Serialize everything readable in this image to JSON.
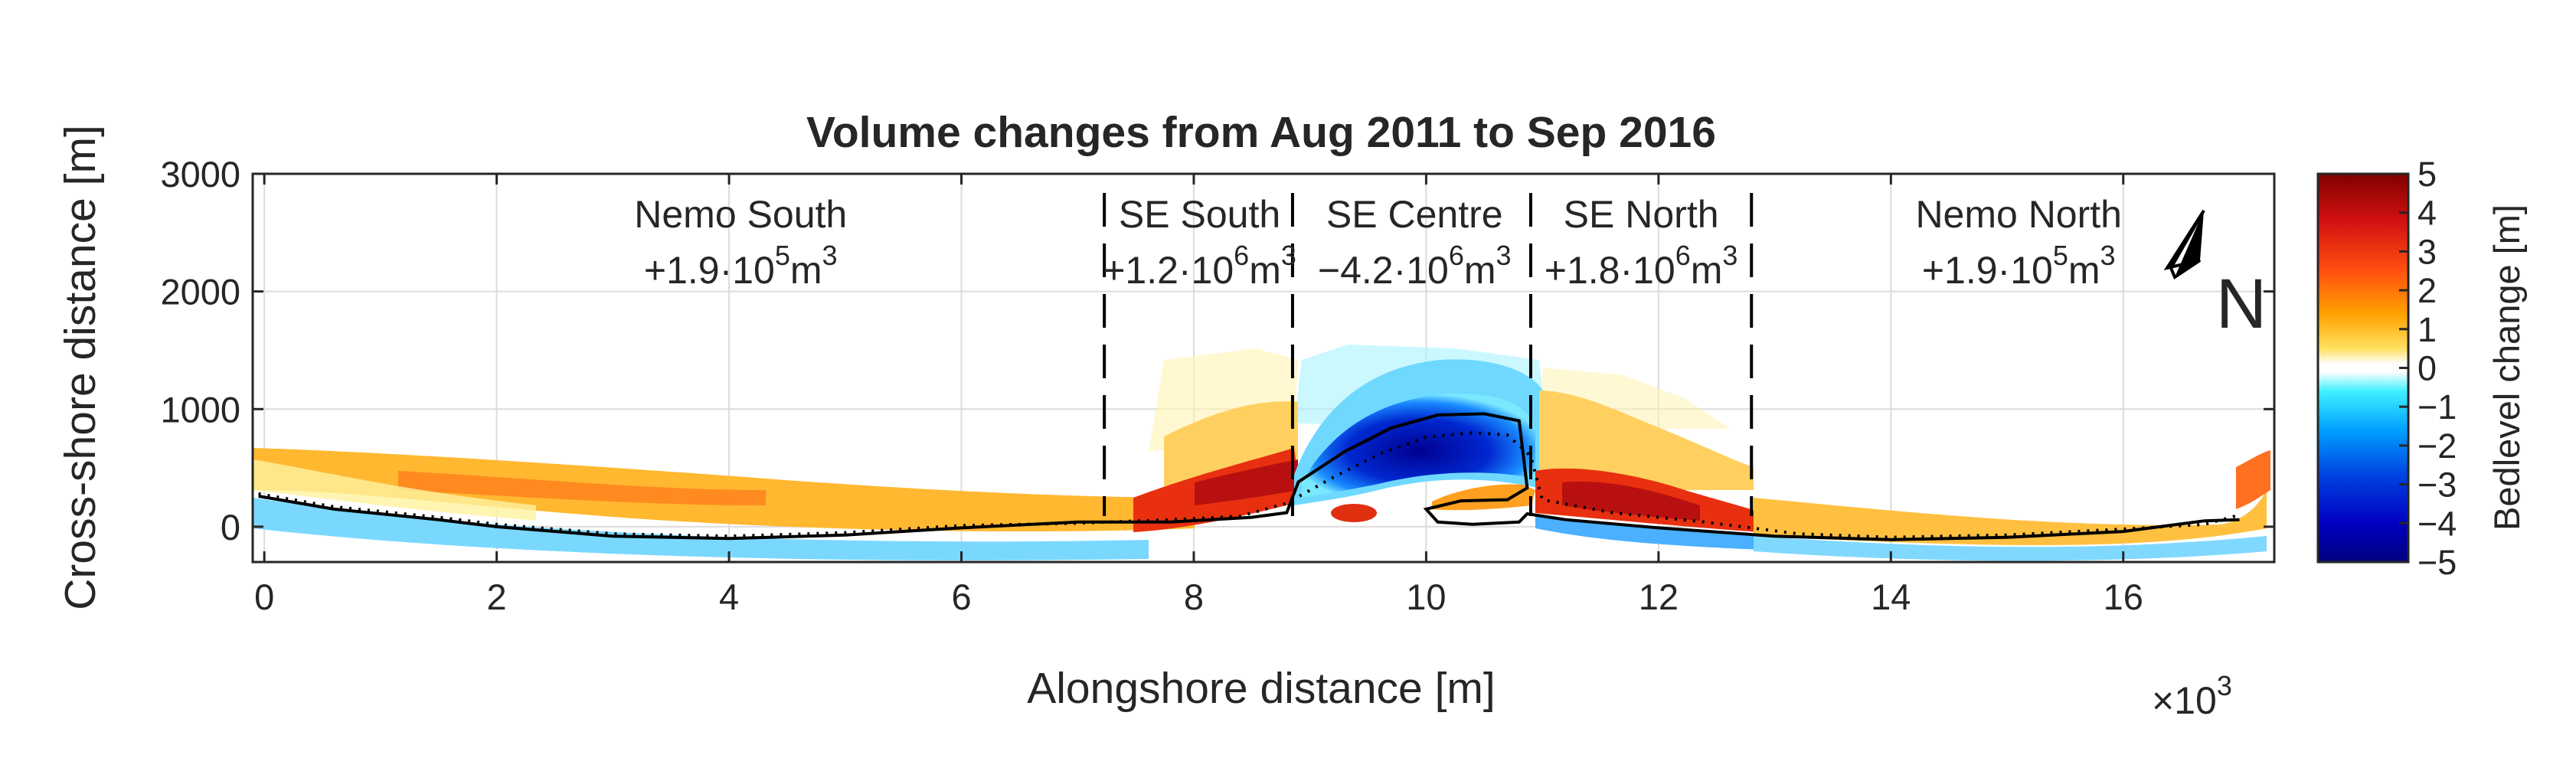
{
  "chart_data": {
    "type": "heatmap",
    "title": "Volume changes from Aug 2011 to Sep 2016",
    "xlabel": "Alongshore distance [m]",
    "ylabel": "Cross-shore distance [m]",
    "x_exponent_label": "×10",
    "x_exponent": "3",
    "xlim": [
      -100,
      17300
    ],
    "ylim": [
      -300,
      3000
    ],
    "x_ticks": [
      0,
      2000,
      4000,
      6000,
      8000,
      10000,
      12000,
      14000,
      16000
    ],
    "x_tick_labels": [
      "0",
      "2",
      "4",
      "6",
      "8",
      "10",
      "12",
      "14",
      "16"
    ],
    "y_ticks": [
      0,
      1000,
      2000,
      3000
    ],
    "y_tick_labels": [
      "0",
      "1000",
      "2000",
      "3000"
    ],
    "grid": true,
    "colorbar": {
      "label": "Bedlevel change [m]",
      "range": [
        -5,
        5
      ],
      "ticks": [
        5,
        4,
        3,
        2,
        1,
        0,
        -1,
        -2,
        -3,
        -4,
        -5
      ],
      "tick_labels": [
        "5",
        "4",
        "3",
        "2",
        "1",
        "0",
        "−1",
        "−2",
        "−3",
        "−4",
        "−5"
      ]
    },
    "section_boundaries_x": [
      7230,
      8850,
      10900,
      12800
    ],
    "sections": [
      {
        "name": "Nemo South",
        "x_center": 4100,
        "volume_mantissa": "+1.9·10",
        "volume_exp": "5",
        "unit": "m",
        "unit_exp": "3"
      },
      {
        "name": "SE South",
        "x_center": 8050,
        "volume_mantissa": "+1.2·10",
        "volume_exp": "6",
        "unit": "m",
        "unit_exp": "3"
      },
      {
        "name": "SE Centre",
        "x_center": 9900,
        "volume_mantissa": "−4.2·10",
        "volume_exp": "6",
        "unit": "m",
        "unit_exp": "3"
      },
      {
        "name": "SE North",
        "x_center": 11850,
        "volume_mantissa": "+1.8·10",
        "volume_exp": "6",
        "unit": "m",
        "unit_exp": "3"
      },
      {
        "name": "Nemo North",
        "x_center": 15100,
        "volume_mantissa": "+1.9·10",
        "volume_exp": "5",
        "unit": "m",
        "unit_exp": "3"
      }
    ],
    "north_arrow_label": "N",
    "shoreline_2011_xy": [
      [
        -50,
        280
      ],
      [
        600,
        170
      ],
      [
        1500,
        80
      ],
      [
        2000,
        20
      ],
      [
        3000,
        -60
      ],
      [
        4000,
        -80
      ],
      [
        5000,
        -50
      ],
      [
        6000,
        10
      ],
      [
        7000,
        30
      ],
      [
        7800,
        60
      ],
      [
        8400,
        90
      ],
      [
        8800,
        200
      ],
      [
        9200,
        420
      ],
      [
        9600,
        620
      ],
      [
        10000,
        760
      ],
      [
        10400,
        800
      ],
      [
        10700,
        780
      ],
      [
        10900,
        600
      ],
      [
        11000,
        230
      ],
      [
        11600,
        120
      ],
      [
        12400,
        40
      ],
      [
        13200,
        -60
      ],
      [
        14000,
        -90
      ],
      [
        15000,
        -70
      ],
      [
        16000,
        -20
      ],
      [
        16700,
        20
      ],
      [
        17000,
        100
      ]
    ],
    "shoreline_2016_xy": [
      [
        -50,
        260
      ],
      [
        600,
        150
      ],
      [
        1500,
        60
      ],
      [
        2000,
        0
      ],
      [
        3000,
        -80
      ],
      [
        4000,
        -100
      ],
      [
        5000,
        -70
      ],
      [
        6000,
        -10
      ],
      [
        7000,
        40
      ],
      [
        7800,
        40
      ],
      [
        8500,
        80
      ],
      [
        8800,
        120
      ],
      [
        8900,
        380
      ],
      [
        9300,
        640
      ],
      [
        9700,
        840
      ],
      [
        10100,
        950
      ],
      [
        10500,
        960
      ],
      [
        10800,
        900
      ],
      [
        10870,
        330
      ],
      [
        10700,
        230
      ],
      [
        10300,
        220
      ],
      [
        10000,
        150
      ],
      [
        10100,
        40
      ],
      [
        10400,
        20
      ],
      [
        10800,
        40
      ],
      [
        10870,
        110
      ],
      [
        11200,
        60
      ],
      [
        12000,
        -10
      ],
      [
        13000,
        -80
      ],
      [
        14000,
        -110
      ],
      [
        15000,
        -90
      ],
      [
        16000,
        -40
      ],
      [
        16700,
        50
      ],
      [
        17000,
        60
      ]
    ],
    "bedlevel_change_regions": [
      {
        "x": [
          -100,
          7230
        ],
        "y": [
          150,
          450
        ],
        "value": 1.6,
        "description": "Nemo South upper beach"
      },
      {
        "x": [
          -100,
          7230
        ],
        "y": [
          -250,
          -60
        ],
        "value": -1.4,
        "description": "Nemo South lower beach"
      },
      {
        "x": [
          7230,
          8850
        ],
        "y": [
          200,
          600
        ],
        "value": 3.2,
        "description": "SE South accretion"
      },
      {
        "x": [
          7230,
          8850
        ],
        "y": [
          600,
          1500
        ],
        "value": 0.8,
        "description": "SE South offshore"
      },
      {
        "x": [
          8850,
          10900
        ],
        "y": [
          250,
          1000
        ],
        "value": -4.4,
        "description": "SE Centre erosion"
      },
      {
        "x": [
          8850,
          10900
        ],
        "y": [
          1000,
          1600
        ],
        "value": -1.8,
        "description": "SE Centre offshore"
      },
      {
        "x": [
          10900,
          12800
        ],
        "y": [
          100,
          600
        ],
        "value": 3.4,
        "description": "SE North accretion"
      },
      {
        "x": [
          10900,
          12800
        ],
        "y": [
          600,
          1200
        ],
        "value": 1.0,
        "description": "SE North offshore"
      },
      {
        "x": [
          12800,
          17200
        ],
        "y": [
          -100,
          300
        ],
        "value": 1.4,
        "description": "Nemo North beach"
      },
      {
        "x": [
          12800,
          17200
        ],
        "y": [
          -250,
          -100
        ],
        "value": -1.2,
        "description": "Nemo North lower beach"
      }
    ]
  }
}
